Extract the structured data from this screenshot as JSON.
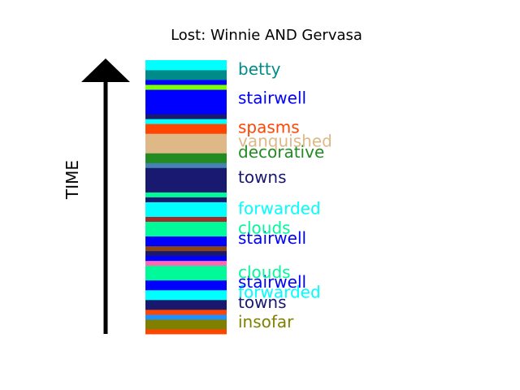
{
  "chart_data": {
    "type": "bar",
    "title": "Lost: Winnie AND Gervasa",
    "ylabel": "TIME",
    "xlabel": "",
    "ylim": [
      0,
      56
    ],
    "segments": [
      {
        "color": "#ff4500"
      },
      {
        "color": "#808000"
      },
      {
        "color": "#808000"
      },
      {
        "color": "#1e90ff"
      },
      {
        "color": "#ff4500"
      },
      {
        "color": "#191970"
      },
      {
        "color": "#191970"
      },
      {
        "color": "#00ffff"
      },
      {
        "color": "#00ffff"
      },
      {
        "color": "#0000ff"
      },
      {
        "color": "#0000ff"
      },
      {
        "color": "#00fa9a"
      },
      {
        "color": "#00fa9a"
      },
      {
        "color": "#00fa9a"
      },
      {
        "color": "#ff69b4"
      },
      {
        "color": "#0000ff"
      },
      {
        "color": "#191970"
      },
      {
        "color": "#8b4513"
      },
      {
        "color": "#0000ff"
      },
      {
        "color": "#0000ff"
      },
      {
        "color": "#00fa9a"
      },
      {
        "color": "#00fa9a"
      },
      {
        "color": "#00fa9a"
      },
      {
        "color": "#a52a2a"
      },
      {
        "color": "#00ffff"
      },
      {
        "color": "#00ffff"
      },
      {
        "color": "#00ffff"
      },
      {
        "color": "#191970"
      },
      {
        "color": "#00fa9a"
      },
      {
        "color": "#191970"
      },
      {
        "color": "#191970"
      },
      {
        "color": "#191970"
      },
      {
        "color": "#191970"
      },
      {
        "color": "#191970"
      },
      {
        "color": "#4682b4"
      },
      {
        "color": "#228b22"
      },
      {
        "color": "#228b22"
      },
      {
        "color": "#deb887"
      },
      {
        "color": "#deb887"
      },
      {
        "color": "#deb887"
      },
      {
        "color": "#deb887"
      },
      {
        "color": "#ff4500"
      },
      {
        "color": "#ff4500"
      },
      {
        "color": "#00ffff"
      },
      {
        "color": "#191970"
      },
      {
        "color": "#0000ff"
      },
      {
        "color": "#0000ff"
      },
      {
        "color": "#0000ff"
      },
      {
        "color": "#0000ff"
      },
      {
        "color": "#0000ff"
      },
      {
        "color": "#7fff00"
      },
      {
        "color": "#0000ff"
      },
      {
        "color": "#008b8b"
      },
      {
        "color": "#008b8b"
      },
      {
        "color": "#00ffff"
      },
      {
        "color": "#00ffff"
      }
    ],
    "labels": [
      {
        "text": "insofar",
        "y": 2.5,
        "color": "#808000"
      },
      {
        "text": "towns",
        "y": 6.5,
        "color": "#191970"
      },
      {
        "text": "forwarded",
        "y": 8.6,
        "color": "#00ffff"
      },
      {
        "text": "stairwell",
        "y": 10.6,
        "color": "#0000ff"
      },
      {
        "text": "clouds",
        "y": 12.6,
        "color": "#00fa9a"
      },
      {
        "text": "stairwell",
        "y": 19.6,
        "color": "#0000ff"
      },
      {
        "text": "clouds",
        "y": 21.7,
        "color": "#00fa9a"
      },
      {
        "text": "forwarded",
        "y": 25.7,
        "color": "#00ffff"
      },
      {
        "text": "towns",
        "y": 32.1,
        "color": "#191970"
      },
      {
        "text": "decorative",
        "y": 37.2,
        "color": "#228b22"
      },
      {
        "text": "vanquished",
        "y": 39.5,
        "color": "#deb887"
      },
      {
        "text": "spasms",
        "y": 42.3,
        "color": "#ff4500"
      },
      {
        "text": "stairwell",
        "y": 48.3,
        "color": "#0000ff"
      },
      {
        "text": "betty",
        "y": 54.2,
        "color": "#008b8b"
      }
    ]
  }
}
